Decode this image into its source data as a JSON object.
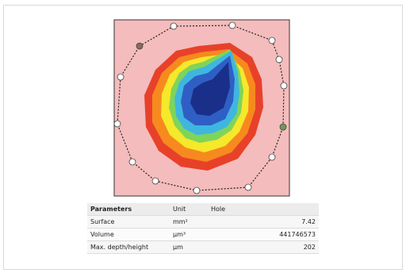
{
  "table": {
    "headers": [
      "Parameters",
      "Unit",
      "Hole"
    ],
    "rows": [
      [
        "Surface",
        "mm²",
        "7.42"
      ],
      [
        "Volume",
        "µm³",
        "441746573"
      ],
      [
        "Max. depth/height",
        "µm",
        "202"
      ]
    ]
  }
}
